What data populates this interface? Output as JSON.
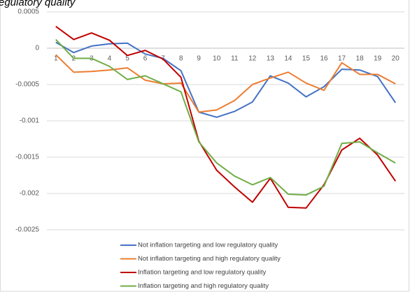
{
  "chart_data": {
    "type": "line",
    "title": "egulatory quality",
    "categories": [
      "1",
      "2",
      "3",
      "4",
      "5",
      "6",
      "7",
      "8",
      "9",
      "10",
      "11",
      "12",
      "13",
      "14",
      "15",
      "16",
      "17",
      "18",
      "19",
      "20"
    ],
    "ylim": [
      -0.0025,
      0.0005
    ],
    "yticks": [
      0.0005,
      0,
      -0.0005,
      -0.001,
      -0.0015,
      -0.002,
      -0.0025
    ],
    "grid": true,
    "legend": "bottom",
    "series": [
      {
        "name": "Not inflation targeting and  low regulatory quality",
        "color": "#4472c4",
        "values": [
          8e-05,
          -6e-05,
          3e-05,
          6e-05,
          7e-05,
          -8e-05,
          -0.00014,
          -0.00031,
          -0.00088,
          -0.00095,
          -0.00087,
          -0.00074,
          -0.00038,
          -0.00048,
          -0.00067,
          -0.00053,
          -0.00029,
          -0.0003,
          -0.00039,
          -0.00075
        ]
      },
      {
        "name": "Not inflation targeting and  high regulatory quality",
        "color": "#ed7d31",
        "values": [
          -9e-05,
          -0.00033,
          -0.00032,
          -0.0003,
          -0.00027,
          -0.00044,
          -0.00049,
          -0.00048,
          -0.00088,
          -0.00085,
          -0.00072,
          -0.0005,
          -0.00041,
          -0.00033,
          -0.00048,
          -0.00058,
          -0.0002,
          -0.00036,
          -0.00036,
          -0.00049
        ]
      },
      {
        "name": "Inflation targeting and  low regulatory quality",
        "color": "#c00000",
        "values": [
          0.0003,
          0.00012,
          0.00021,
          0.00011,
          -0.0001,
          -3e-05,
          -0.00015,
          -0.0004,
          -0.00128,
          -0.00168,
          -0.00191,
          -0.00212,
          -0.00179,
          -0.00219,
          -0.0022,
          -0.00188,
          -0.0014,
          -0.00124,
          -0.00147,
          -0.00183
        ]
      },
      {
        "name": "Inflation targeting and  high regulatory quality",
        "color": "#70ad47",
        "values": [
          0.00012,
          -0.00014,
          -0.00014,
          -0.00025,
          -0.00043,
          -0.00038,
          -0.00049,
          -0.0006,
          -0.00129,
          -0.00158,
          -0.00176,
          -0.00188,
          -0.00178,
          -0.00201,
          -0.00202,
          -0.0019,
          -0.00131,
          -0.00129,
          -0.00144,
          -0.00158
        ]
      }
    ]
  }
}
